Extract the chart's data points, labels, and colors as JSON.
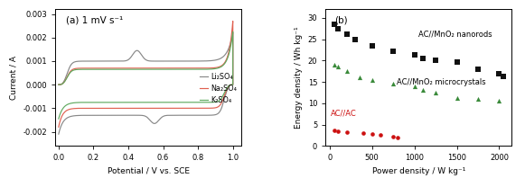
{
  "panel_a": {
    "title": "(a) 1 mV s⁻¹",
    "xlabel": "Potential / V vs. SCE",
    "ylabel": "Current / A",
    "xlim": [
      -0.02,
      1.05
    ],
    "ylim": [
      -0.0026,
      0.0032
    ],
    "yticks": [
      -0.002,
      -0.001,
      0.0,
      0.001,
      0.002,
      0.003
    ],
    "xticks": [
      0.0,
      0.2,
      0.4,
      0.6,
      0.8,
      1.0
    ],
    "legend": [
      "Li₂SO₄",
      "Na₂SO₄",
      "K₂SO₄"
    ],
    "colors": [
      "#888888",
      "#e06050",
      "#60aa60"
    ]
  },
  "panel_b": {
    "title": "(b)",
    "xlabel": "Power density / W kg⁻¹",
    "ylabel": "Energy density / Wh kg⁻¹",
    "xlim": [
      -50,
      2150
    ],
    "ylim": [
      0,
      32
    ],
    "yticks": [
      0,
      5,
      10,
      15,
      20,
      25,
      30
    ],
    "xticks": [
      0,
      500,
      1000,
      1500,
      2000
    ],
    "nanorods_x": [
      50,
      100,
      200,
      300,
      500,
      750,
      1000,
      1100,
      1250,
      1500,
      1750,
      2000,
      2050
    ],
    "nanorods_y": [
      28.5,
      27.5,
      26.2,
      25.0,
      23.5,
      22.2,
      21.3,
      20.5,
      20.0,
      19.7,
      18.0,
      17.0,
      16.2
    ],
    "microcrystals_x": [
      50,
      100,
      200,
      350,
      500,
      750,
      1000,
      1100,
      1250,
      1500,
      1750,
      2000
    ],
    "microcrystals_y": [
      19.0,
      18.5,
      17.5,
      16.0,
      15.5,
      14.5,
      14.0,
      13.2,
      12.5,
      11.2,
      11.0,
      10.5
    ],
    "acac_x": [
      50,
      100,
      200,
      400,
      500,
      600,
      750,
      800
    ],
    "acac_y": [
      3.6,
      3.5,
      3.3,
      3.0,
      2.8,
      2.5,
      2.2,
      2.0
    ],
    "nanorods_color": "#111111",
    "microcrystals_color": "#3a8a3a",
    "acac_color": "#cc1111",
    "nanorods_label": "AC//MnO₂ nanorods",
    "microcrystals_label": "AC//MnO₂ microcrystals",
    "acac_label": "AC//AC"
  }
}
